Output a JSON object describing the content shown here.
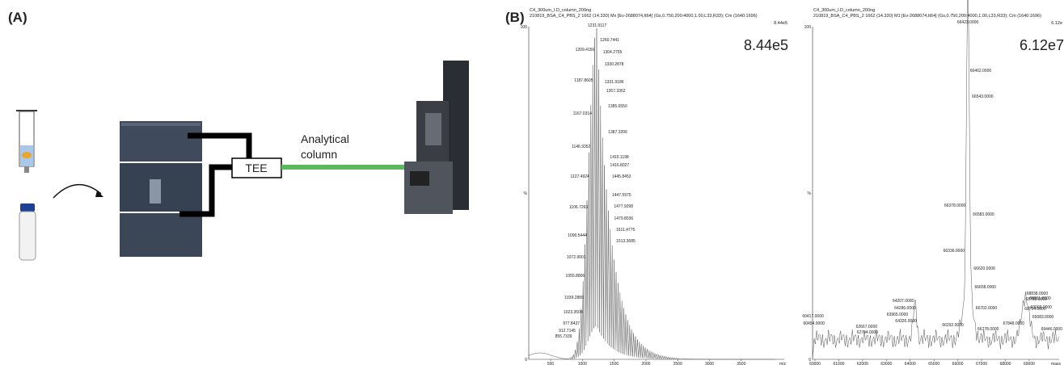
{
  "panel_a": {
    "label": "(A)",
    "tee": "TEE",
    "column_label": [
      "Analytical",
      "column"
    ]
  },
  "panel_b": {
    "label": "(B)",
    "spectra": [
      {
        "title": "C4_300um_I.D_column_200ng",
        "subtitle": "210819_BSA_C4_PBS_2  1662 (14.330) Mx [Ev-2688074,It64] (Gs,0.750,200:4000,1.00,L33,R33); Cm (1640:1696)",
        "scale_small": "8.44e5",
        "intensity": "8.44e5",
        "y_top": "100",
        "y_mid": "%",
        "y_zero": "0",
        "x_ticks": [
          "500",
          "1000",
          "1500",
          "2000",
          "2500",
          "3000",
          "3500"
        ],
        "x_unit": "m/z",
        "peaks": [
          "1231.9117",
          "1260.7441",
          "1209.4156",
          "1304.2755",
          "1330.2878",
          "1187.8605",
          "1331.9186",
          "1357.3352",
          "1385.6550",
          "1167.0314",
          "1387.3206",
          "1146.9352",
          "1415.1198",
          "1416.8027",
          "1127.4924",
          "1445.8453",
          "1447.5975",
          "1106.7263",
          "1477.9298",
          "1479.8036",
          "1511.4775",
          "1090.5444",
          "1513.3685",
          "1072.9001",
          "1055.8806",
          "1039.2889",
          "1023.3508",
          "977.8437",
          "912.7145",
          "855.7339"
        ]
      },
      {
        "title": "C4_300um_I.D_column_200ng",
        "subtitle": "210819_BSA_C4_PBS_2  1662 (14.330) M1 [Ev-2688074,It64] (Gs,0.750,200:4000,1.00,L33,R33); Cm (1640:1696)",
        "scale_small": "6.12e",
        "intensity": "6.12e7",
        "y_top": "100",
        "y_mid": "%",
        "y_zero": "0",
        "x_ticks": [
          "60000",
          "61000",
          "62000",
          "63000",
          "64000",
          "65000",
          "66000",
          "67000",
          "68000",
          "69000"
        ],
        "x_unit": "mass",
        "peaks": [
          "66423.0000",
          "66462.0000",
          "66543.0000",
          "66378.0000",
          "66583.0000",
          "66336.0000",
          "66620.0000",
          "66658.0000",
          "64207.0000",
          "68838.0000",
          "68795.0000",
          "68961.0000",
          "64286.0000",
          "66702.0000",
          "69003.0000",
          "63965.0000",
          "68754.0000",
          "60417.0000",
          "69083.0000",
          "64326.0000",
          "60454.0000",
          "67848.0000",
          "62667.0000",
          "66292.0000",
          "66778.0000",
          "69446.0000",
          "62704.0000"
        ]
      }
    ]
  }
}
